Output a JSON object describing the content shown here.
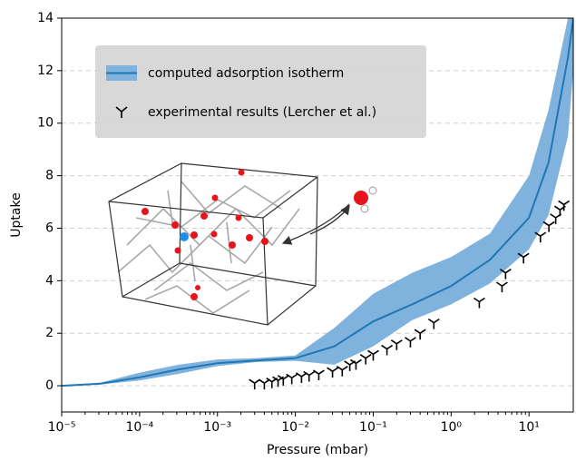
{
  "chart_data": {
    "type": "line",
    "x_label": "Pressure (mbar)",
    "y_label": "Uptake",
    "xscale": "log",
    "xlim": [
      1e-05,
      37
    ],
    "ylim": [
      -1,
      14
    ],
    "xticks": [
      {
        "value": 1e-05,
        "label": "10⁻⁵"
      },
      {
        "value": 0.0001,
        "label": "10⁻⁴"
      },
      {
        "value": 0.001,
        "label": "10⁻³"
      },
      {
        "value": 0.01,
        "label": "10⁻²"
      },
      {
        "value": 0.1,
        "label": "10⁻¹"
      },
      {
        "value": 1,
        "label": "10⁰"
      },
      {
        "value": 10,
        "label": "10¹"
      }
    ],
    "yticks": [
      0,
      2,
      4,
      6,
      8,
      10,
      12,
      14
    ],
    "grid": true,
    "legend": "upper left",
    "series": [
      {
        "name": "computed adsorption isotherm",
        "type": "line",
        "color": "#1f77b4",
        "band_color": "#7fb2dd",
        "x": [
          1e-05,
          3.16e-05,
          0.0001,
          0.000316,
          0.001,
          0.00316,
          0.01,
          0.0316,
          0.1,
          0.316,
          1,
          3.16,
          10,
          17.8,
          31.6,
          37
        ],
        "values": [
          0,
          0.08,
          0.32,
          0.62,
          0.86,
          0.96,
          1.05,
          1.5,
          2.45,
          3.1,
          3.8,
          4.8,
          6.4,
          8.5,
          12.5,
          14
        ],
        "lower": [
          0,
          0.05,
          0.2,
          0.45,
          0.75,
          0.9,
          0.95,
          0.8,
          1.5,
          2.5,
          3.1,
          3.9,
          5.2,
          6.5,
          9.5,
          12
        ],
        "upper": [
          0,
          0.12,
          0.5,
          0.8,
          1.0,
          1.05,
          1.15,
          2.2,
          3.5,
          4.3,
          4.9,
          5.8,
          8.0,
          10.5,
          14,
          14
        ]
      },
      {
        "name": "experimental results (Lercher et al.)",
        "type": "scatter",
        "color": "#000000",
        "x": [
          0.003,
          0.004,
          0.005,
          0.006,
          0.007,
          0.009,
          0.012,
          0.015,
          0.02,
          0.03,
          0.04,
          0.05,
          0.06,
          0.08,
          0.1,
          0.15,
          0.2,
          0.3,
          0.4,
          0.6,
          2.3,
          4.5,
          5,
          8.5,
          14,
          18,
          22,
          25,
          28
        ],
        "values": [
          0.1,
          0.1,
          0.15,
          0.2,
          0.25,
          0.3,
          0.35,
          0.4,
          0.45,
          0.55,
          0.6,
          0.8,
          0.85,
          1.05,
          1.2,
          1.4,
          1.6,
          1.7,
          2.0,
          2.4,
          3.2,
          3.8,
          4.3,
          4.9,
          5.7,
          6.1,
          6.4,
          6.7,
          6.9
        ]
      }
    ]
  }
}
